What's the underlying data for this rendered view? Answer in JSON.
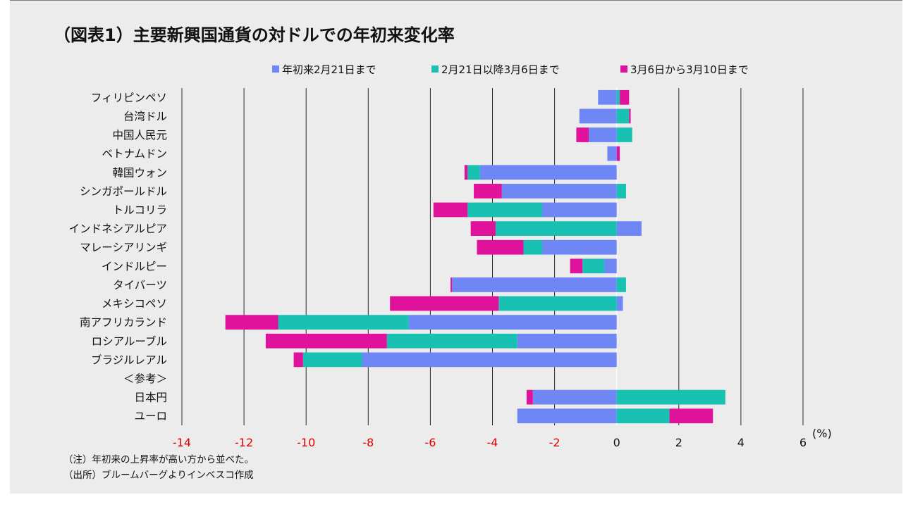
{
  "title": "（図表1）主要新興国通貨の対ドルでの年初来変化率",
  "unit_label": "(%)",
  "notes": [
    "（注）年初来の上昇率が高い方から並べた。",
    "（出所）ブルームバーグよりインベスコ作成"
  ],
  "chart_data": {
    "type": "bar",
    "orientation": "horizontal",
    "stacked": true,
    "categories": [
      "フィリピンペソ",
      "台湾ドル",
      "中国人民元",
      "ベトナムドン",
      "韓国ウォン",
      "シンガポールドル",
      "トルコリラ",
      "インドネシアルピア",
      "マレーシアリンギ",
      "インドルピー",
      "タイバーツ",
      "メキシコペソ",
      "南アフリカランド",
      "ロシアルーブル",
      "ブラジルレアル",
      "＜参考＞",
      "日本円",
      "ユーロ"
    ],
    "series": [
      {
        "name": "年初来2月21日まで",
        "color": "#6f86f5",
        "values": [
          -0.6,
          -1.2,
          -0.9,
          -0.3,
          -4.4,
          -3.7,
          -2.4,
          0.8,
          -2.4,
          -0.4,
          -5.3,
          0.2,
          -6.7,
          -3.2,
          -8.2,
          null,
          -2.7,
          -3.2
        ]
      },
      {
        "name": "2月21日以降3月6日まで",
        "color": "#19c1b3",
        "values": [
          0.1,
          0.4,
          0.5,
          0.0,
          -0.4,
          0.3,
          -2.4,
          -3.9,
          -0.6,
          -0.7,
          0.3,
          -3.8,
          -4.2,
          -4.2,
          -1.9,
          null,
          3.5,
          1.7
        ]
      },
      {
        "name": "3月6日から3月10日まで",
        "color": "#e0119a",
        "values": [
          0.3,
          0.05,
          -0.4,
          0.1,
          -0.1,
          -0.9,
          -1.1,
          -0.8,
          -1.5,
          -0.4,
          -0.05,
          -3.5,
          -1.7,
          -3.9,
          -0.3,
          null,
          -0.2,
          1.4
        ]
      }
    ],
    "xlim": [
      -14,
      6
    ],
    "xticks": [
      -14,
      -12,
      -10,
      -8,
      -6,
      -4,
      -2,
      0,
      2,
      4,
      6
    ],
    "negative_tick_color": "#e00000",
    "positive_tick_color": "#111111",
    "grid": "vertical",
    "legend_position": "top"
  }
}
